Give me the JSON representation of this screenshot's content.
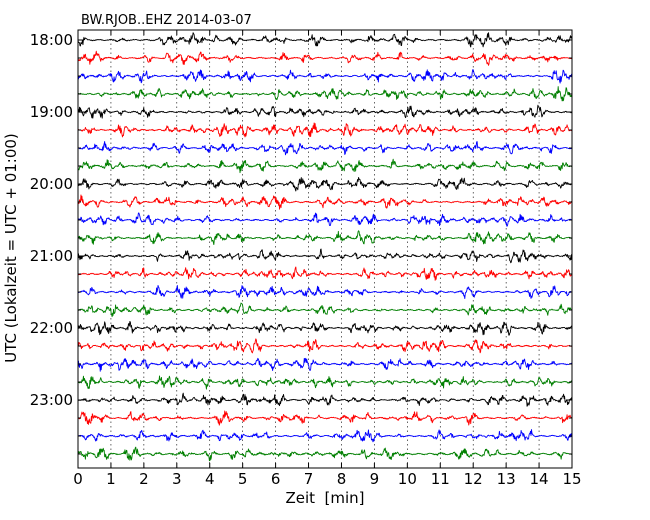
{
  "chart_data": {
    "type": "line",
    "title": "BW.RJOB..EHZ 2014-03-07",
    "xlabel": "Zeit  [min]",
    "ylabel": "UTC (Lokalzeit = UTC + 01:00)",
    "xlim": [
      0,
      15
    ],
    "x_ticks": [
      "0",
      "1",
      "2",
      "3",
      "4",
      "5",
      "6",
      "7",
      "8",
      "9",
      "10",
      "11",
      "12",
      "13",
      "14",
      "15"
    ],
    "y_ticks": [
      "18:00",
      "19:00",
      "20:00",
      "21:00",
      "22:00",
      "23:00"
    ],
    "trace_start": "18:00",
    "trace_interval_min": 15,
    "trace_count": 24,
    "trace_colors": [
      "#000000",
      "#ff0000",
      "#0000ff",
      "#007f00"
    ],
    "grid": "vertical dotted lines at each minute"
  }
}
